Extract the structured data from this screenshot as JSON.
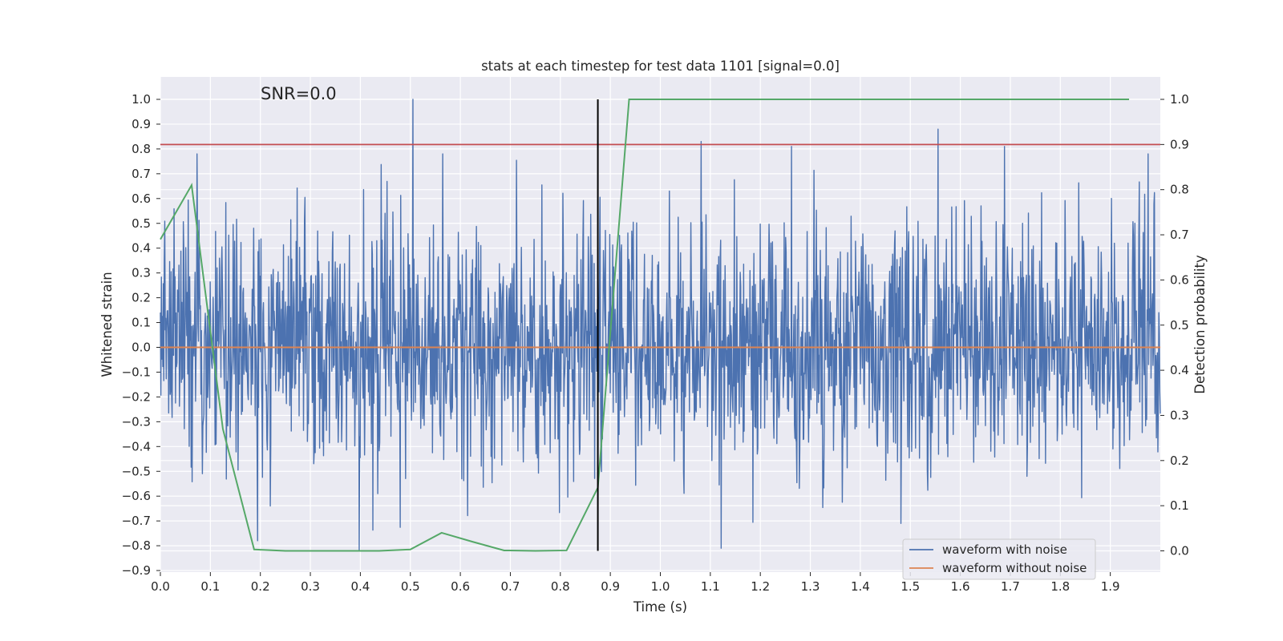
{
  "chart_data": {
    "type": "line",
    "title": "stats at each timestep for test data 1101 [signal=0.0]",
    "xlabel": "Time (s)",
    "ylabel_left": "Whitened strain",
    "ylabel_right": "Detection probability",
    "annotation": "SNR=0.0",
    "xlim": [
      0.0,
      2.0
    ],
    "ylim_left": [
      -0.9,
      1.0
    ],
    "ylim_right": [
      0.0,
      1.0
    ],
    "x_ticks": [
      "0.0",
      "0.1",
      "0.2",
      "0.3",
      "0.4",
      "0.5",
      "0.6",
      "0.7",
      "0.8",
      "0.9",
      "1.0",
      "1.1",
      "1.2",
      "1.3",
      "1.4",
      "1.5",
      "1.6",
      "1.7",
      "1.8",
      "1.9"
    ],
    "y_ticks_left": [
      "1.0",
      "0.9",
      "0.8",
      "0.7",
      "0.6",
      "0.5",
      "0.4",
      "0.3",
      "0.2",
      "0.1",
      "0.0",
      "−0.1",
      "−0.2",
      "−0.3",
      "−0.4",
      "−0.5",
      "−0.6",
      "−0.7",
      "−0.8",
      "−0.9"
    ],
    "y_ticks_right": [
      "1.0",
      "0.9",
      "0.8",
      "0.7",
      "0.6",
      "0.5",
      "0.4",
      "0.3",
      "0.2",
      "0.1",
      "0.0"
    ],
    "grid": true,
    "legend_position": "bottom-right",
    "series": [
      {
        "name": "waveform with noise",
        "color": "#4c72b0",
        "axis": "left",
        "kind": "noise",
        "x_range": [
          0.0,
          2.0
        ],
        "num_samples": 2048,
        "std": 0.25,
        "max_abs": 1.0,
        "peaks": [
          [
            0.505,
            1.0
          ],
          [
            0.398,
            -0.82
          ],
          [
            1.555,
            0.88
          ],
          [
            1.082,
            0.83
          ],
          [
            1.262,
            0.81
          ],
          [
            1.688,
            0.81
          ],
          [
            1.122,
            -0.81
          ]
        ]
      },
      {
        "name": "waveform without noise",
        "color": "#dd8452",
        "axis": "left",
        "kind": "constant",
        "value": 0.0,
        "x_range": [
          0.0,
          2.0
        ]
      },
      {
        "color": "#55a868",
        "axis": "right",
        "kind": "line",
        "x": [
          0.0,
          0.0625,
          0.125,
          0.1875,
          0.25,
          0.3125,
          0.375,
          0.4375,
          0.5,
          0.5625,
          0.625,
          0.6875,
          0.75,
          0.8125,
          0.875,
          0.9375,
          1.0,
          1.0625,
          1.125,
          1.1875,
          1.25,
          1.3125,
          1.375,
          1.4375,
          1.5,
          1.5625,
          1.625,
          1.6875,
          1.75,
          1.8125,
          1.875,
          1.9375
        ],
        "y": [
          0.69,
          0.81,
          0.27,
          0.003,
          0.0,
          0.0,
          0.0,
          0.0,
          0.003,
          0.04,
          0.02,
          0.001,
          0.0,
          0.001,
          0.14,
          1.0,
          1.0,
          1.0,
          1.0,
          1.0,
          1.0,
          1.0,
          1.0,
          1.0,
          1.0,
          1.0,
          1.0,
          1.0,
          1.0,
          1.0,
          1.0,
          1.0
        ]
      }
    ],
    "hlines": [
      {
        "axis": "right",
        "value": 0.9,
        "color": "#c44e52"
      }
    ],
    "vlines": [
      {
        "x": 0.875,
        "y_range_right": [
          0.0,
          1.0
        ],
        "color": "#000000"
      }
    ],
    "colors": {
      "axes_bg": "#eaeaf2",
      "grid": "#ffffff",
      "legend_bg": "#eaeaf2",
      "legend_border": "#cccccc"
    }
  }
}
